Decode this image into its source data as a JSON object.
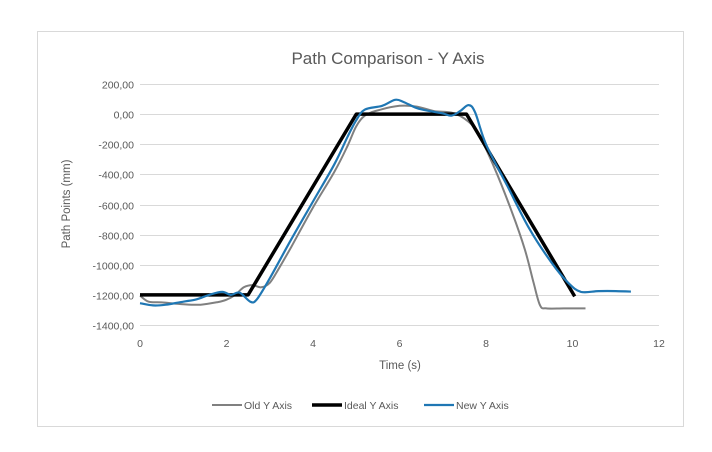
{
  "chart_data": {
    "type": "line",
    "title": "Path Comparison - Y Axis",
    "xlabel": "Time (s)",
    "ylabel": "Path Points (mm)",
    "xlim": [
      0,
      12
    ],
    "ylim": [
      -1400,
      200
    ],
    "x_ticks": [
      0,
      2,
      4,
      6,
      8,
      10,
      12
    ],
    "x_tick_labels": [
      "0",
      "2",
      "4",
      "6",
      "8",
      "10",
      "12"
    ],
    "y_ticks": [
      200,
      0,
      -200,
      -400,
      -600,
      -800,
      -1000,
      -1200,
      -1400
    ],
    "y_tick_labels": [
      "200,00",
      "0,00",
      "-200,00",
      "-400,00",
      "-600,00",
      "-800,00",
      "-1000,00",
      "-1200,00",
      "-1400,00"
    ],
    "grid": "horizontal",
    "legend_position": "bottom",
    "series": [
      {
        "name": "Old Y Axis",
        "color": "#808080",
        "points": [
          [
            0,
            -1205
          ],
          [
            0.2,
            -1245
          ],
          [
            0.5,
            -1250
          ],
          [
            1.0,
            -1262
          ],
          [
            1.4,
            -1265
          ],
          [
            1.8,
            -1248
          ],
          [
            2.0,
            -1232
          ],
          [
            2.2,
            -1200
          ],
          [
            2.4,
            -1150
          ],
          [
            2.6,
            -1135
          ],
          [
            2.8,
            -1150
          ],
          [
            3.0,
            -1120
          ],
          [
            3.2,
            -1030
          ],
          [
            3.5,
            -880
          ],
          [
            4.0,
            -620
          ],
          [
            4.5,
            -380
          ],
          [
            4.8,
            -210
          ],
          [
            5.0,
            -80
          ],
          [
            5.2,
            -10
          ],
          [
            5.5,
            25
          ],
          [
            6.0,
            55
          ],
          [
            6.4,
            50
          ],
          [
            6.8,
            20
          ],
          [
            7.2,
            10
          ],
          [
            7.5,
            -30
          ],
          [
            7.8,
            -120
          ],
          [
            8.2,
            -360
          ],
          [
            8.6,
            -650
          ],
          [
            8.9,
            -900
          ],
          [
            9.1,
            -1120
          ],
          [
            9.25,
            -1270
          ],
          [
            9.4,
            -1290
          ],
          [
            9.8,
            -1290
          ],
          [
            10.3,
            -1290
          ]
        ]
      },
      {
        "name": "Ideal Y Axis",
        "color": "#000000",
        "points": [
          [
            0,
            -1200
          ],
          [
            2.5,
            -1200
          ],
          [
            5.0,
            0
          ],
          [
            7.55,
            0
          ],
          [
            10.05,
            -1210
          ]
        ]
      },
      {
        "name": "New Y Axis",
        "color": "#1f77b4",
        "points": [
          [
            0,
            -1255
          ],
          [
            0.3,
            -1270
          ],
          [
            0.6,
            -1265
          ],
          [
            1.0,
            -1245
          ],
          [
            1.3,
            -1230
          ],
          [
            1.6,
            -1200
          ],
          [
            1.9,
            -1180
          ],
          [
            2.1,
            -1200
          ],
          [
            2.3,
            -1185
          ],
          [
            2.55,
            -1245
          ],
          [
            2.7,
            -1230
          ],
          [
            3.0,
            -1090
          ],
          [
            3.5,
            -830
          ],
          [
            4.0,
            -580
          ],
          [
            4.5,
            -330
          ],
          [
            4.8,
            -150
          ],
          [
            5.0,
            -40
          ],
          [
            5.2,
            30
          ],
          [
            5.6,
            55
          ],
          [
            5.9,
            95
          ],
          [
            6.1,
            80
          ],
          [
            6.4,
            40
          ],
          [
            6.7,
            20
          ],
          [
            7.0,
            5
          ],
          [
            7.2,
            -10
          ],
          [
            7.4,
            20
          ],
          [
            7.6,
            60
          ],
          [
            7.75,
            10
          ],
          [
            8.0,
            -200
          ],
          [
            8.5,
            -480
          ],
          [
            9.0,
            -760
          ],
          [
            9.5,
            -980
          ],
          [
            9.9,
            -1120
          ],
          [
            10.2,
            -1180
          ],
          [
            10.6,
            -1175
          ],
          [
            11.0,
            -1175
          ],
          [
            11.35,
            -1178
          ]
        ]
      }
    ]
  }
}
